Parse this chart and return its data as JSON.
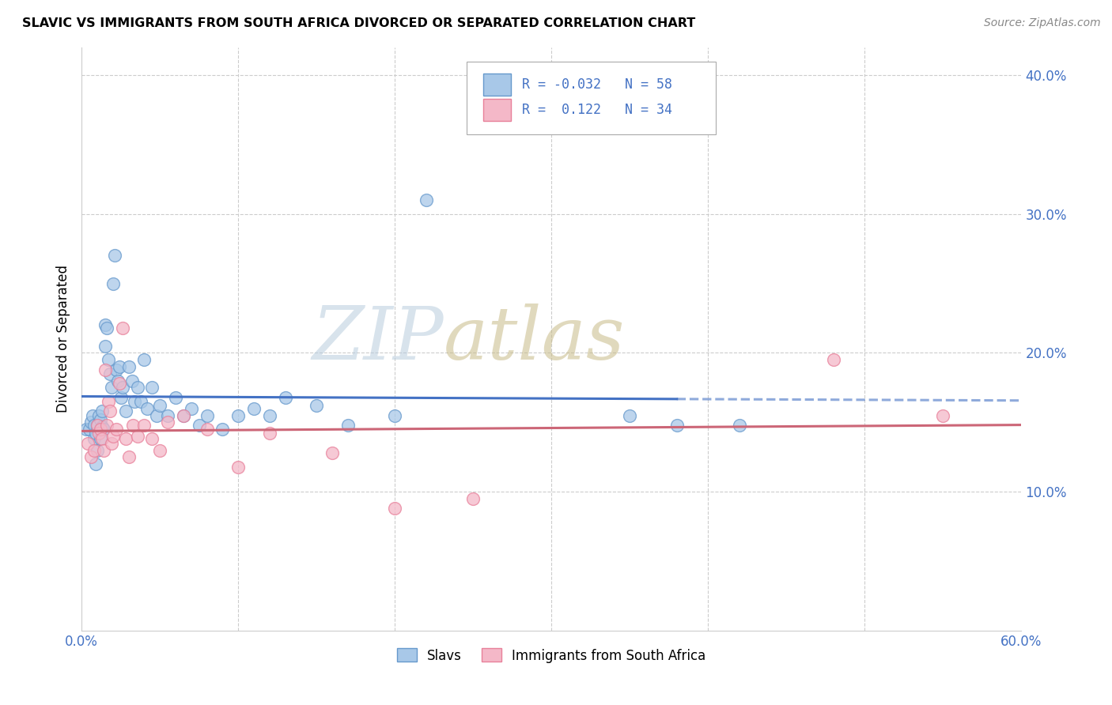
{
  "title": "SLAVIC VS IMMIGRANTS FROM SOUTH AFRICA DIVORCED OR SEPARATED CORRELATION CHART",
  "source": "Source: ZipAtlas.com",
  "ylabel": "Divorced or Separated",
  "legend_labels": [
    "Slavs",
    "Immigrants from South Africa"
  ],
  "slavs_R": -0.032,
  "slavs_N": 58,
  "sa_R": 0.122,
  "sa_N": 34,
  "xlim": [
    0.0,
    0.6
  ],
  "ylim": [
    0.0,
    0.42
  ],
  "xticks": [
    0.0,
    0.6
  ],
  "yticks": [
    0.1,
    0.2,
    0.3,
    0.4
  ],
  "xtick_labels": [
    "0.0%",
    "60.0%"
  ],
  "ytick_labels": [
    "10.0%",
    "20.0%",
    "30.0%",
    "40.0%"
  ],
  "color_slavs": "#a8c8e8",
  "color_sa": "#f4b8c8",
  "color_slavs_dot": "#6699cc",
  "color_sa_dot": "#e8809a",
  "color_slavs_line": "#4472c4",
  "color_sa_line": "#cc6677",
  "watermark_zip": "#c8d8ee",
  "watermark_atlas": "#c8c8aa",
  "grid_color": "#cccccc",
  "slavs_x": [
    0.003,
    0.005,
    0.006,
    0.007,
    0.008,
    0.008,
    0.009,
    0.009,
    0.01,
    0.01,
    0.011,
    0.012,
    0.012,
    0.013,
    0.013,
    0.014,
    0.015,
    0.015,
    0.016,
    0.017,
    0.018,
    0.019,
    0.02,
    0.021,
    0.022,
    0.023,
    0.024,
    0.025,
    0.026,
    0.028,
    0.03,
    0.032,
    0.034,
    0.036,
    0.038,
    0.04,
    0.042,
    0.045,
    0.048,
    0.05,
    0.055,
    0.06,
    0.065,
    0.07,
    0.075,
    0.08,
    0.09,
    0.1,
    0.11,
    0.12,
    0.13,
    0.15,
    0.17,
    0.2,
    0.22,
    0.35,
    0.38,
    0.42
  ],
  "slavs_y": [
    0.145,
    0.145,
    0.15,
    0.155,
    0.148,
    0.138,
    0.142,
    0.12,
    0.148,
    0.13,
    0.155,
    0.152,
    0.138,
    0.147,
    0.158,
    0.145,
    0.22,
    0.205,
    0.218,
    0.195,
    0.185,
    0.175,
    0.25,
    0.27,
    0.188,
    0.18,
    0.19,
    0.168,
    0.175,
    0.158,
    0.19,
    0.18,
    0.165,
    0.175,
    0.165,
    0.195,
    0.16,
    0.175,
    0.155,
    0.162,
    0.155,
    0.168,
    0.155,
    0.16,
    0.148,
    0.155,
    0.145,
    0.155,
    0.16,
    0.155,
    0.168,
    0.162,
    0.148,
    0.155,
    0.31,
    0.155,
    0.148,
    0.148
  ],
  "sa_x": [
    0.004,
    0.006,
    0.008,
    0.01,
    0.011,
    0.012,
    0.013,
    0.014,
    0.015,
    0.016,
    0.017,
    0.018,
    0.019,
    0.02,
    0.022,
    0.024,
    0.026,
    0.028,
    0.03,
    0.033,
    0.036,
    0.04,
    0.045,
    0.05,
    0.055,
    0.065,
    0.08,
    0.1,
    0.12,
    0.16,
    0.2,
    0.25,
    0.48,
    0.55
  ],
  "sa_y": [
    0.135,
    0.125,
    0.13,
    0.148,
    0.142,
    0.145,
    0.138,
    0.13,
    0.188,
    0.148,
    0.165,
    0.158,
    0.135,
    0.14,
    0.145,
    0.178,
    0.218,
    0.138,
    0.125,
    0.148,
    0.14,
    0.148,
    0.138,
    0.13,
    0.15,
    0.155,
    0.145,
    0.118,
    0.142,
    0.128,
    0.088,
    0.095,
    0.195,
    0.155
  ]
}
